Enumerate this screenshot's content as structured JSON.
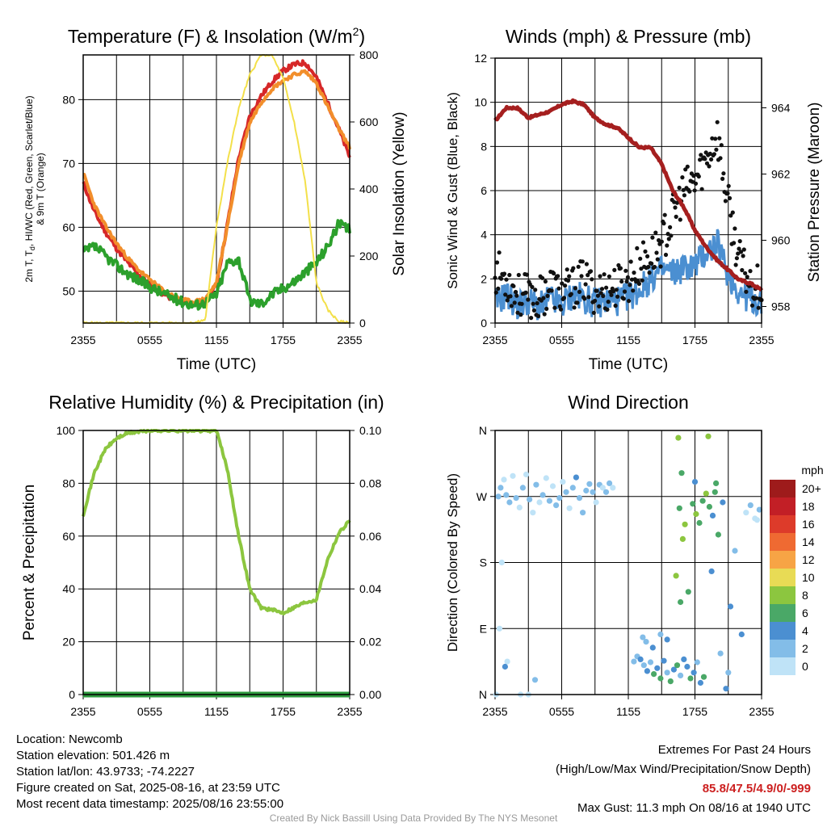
{
  "chart_data": [
    {
      "type": "line",
      "title": "Temperature (F) & Insolation (W/m²)",
      "xlabel": "Time (UTC)",
      "ylabel_left": "2m T, Td, HI/WC (Red, Green, Scarlet/Blue) & 9m T (Orange)",
      "ylabel_right": "Solar Insolation (Yellow)",
      "x_ticks": [
        "2355",
        "0555",
        "1155",
        "1755",
        "2355"
      ],
      "ylim": [
        45,
        87
      ],
      "yticks": [
        50,
        60,
        70,
        80
      ],
      "ylim_right": [
        0,
        800
      ],
      "yticks_right": [
        0,
        200,
        400,
        600,
        800
      ],
      "grid": true,
      "x": [
        0,
        1,
        2,
        3,
        4,
        5,
        6,
        7,
        8,
        9,
        10,
        11,
        12,
        13,
        14,
        15,
        16,
        17,
        18,
        19,
        20,
        21,
        22,
        23,
        24
      ],
      "series": [
        {
          "color": "#d62728",
          "axis": "left",
          "values": [
            67.0,
            62.5,
            59.3,
            56.7,
            54.5,
            52.6,
            51.1,
            49.8,
            48.8,
            48.1,
            47.9,
            48.4,
            51.0,
            60.6,
            70.8,
            77.4,
            80.5,
            82.8,
            84.5,
            85.5,
            85.8,
            83.5,
            79.5,
            75.5,
            71.0
          ]
        },
        {
          "color": "#f28e2b",
          "axis": "left",
          "values": [
            68.5,
            63.5,
            60.2,
            57.5,
            55.2,
            53.3,
            51.8,
            50.4,
            49.4,
            48.6,
            48.3,
            48.8,
            51.3,
            60.3,
            70.0,
            76.4,
            79.5,
            81.7,
            83.0,
            83.9,
            84.4,
            82.6,
            79.0,
            75.5,
            72.5
          ]
        },
        {
          "color": "#2ca02c",
          "axis": "left",
          "values": [
            56.0,
            57.0,
            55.5,
            54.0,
            52.8,
            51.7,
            50.7,
            49.8,
            49.0,
            48.3,
            47.8,
            48.2,
            49.5,
            54.5,
            55.0,
            48.5,
            48.0,
            49.5,
            50.5,
            51.5,
            53.0,
            54.5,
            57.0,
            60.5,
            59.5
          ]
        },
        {
          "color": "#f3e04a",
          "axis": "right",
          "values": [
            0,
            0,
            0,
            0,
            0,
            0,
            0,
            0,
            0,
            0,
            0,
            10,
            290,
            480,
            640,
            740,
            800,
            800,
            730,
            600,
            420,
            120,
            40,
            5,
            0
          ]
        }
      ]
    },
    {
      "type": "scatter",
      "title": "Winds (mph) & Pressure (mb)",
      "xlabel": "Time (UTC)",
      "ylabel_left": "Sonic Wind & Gust (Blue, Black)",
      "ylabel_right": "Station Pressure (Maroon)",
      "x_ticks": [
        "2355",
        "0555",
        "1155",
        "1755",
        "2355"
      ],
      "ylim": [
        0,
        12
      ],
      "yticks": [
        0,
        2,
        4,
        6,
        8,
        10,
        12
      ],
      "ylim_right": [
        957.5,
        965.5
      ],
      "yticks_right": [
        958,
        960,
        962,
        964
      ],
      "grid": true,
      "x": [
        0,
        1,
        2,
        3,
        4,
        5,
        6,
        7,
        8,
        9,
        10,
        11,
        12,
        13,
        14,
        15,
        16,
        17,
        18,
        19,
        20,
        21,
        22,
        23,
        24
      ],
      "series": [
        {
          "color": "#4b8fd1",
          "kind": "line",
          "axis": "left",
          "values": [
            0.9,
            1.3,
            0.8,
            1.0,
            0.7,
            1.1,
            0.8,
            1.3,
            1.1,
            0.9,
            1.0,
            1.0,
            1.2,
            1.5,
            2.0,
            2.4,
            2.3,
            2.5,
            2.6,
            3.2,
            3.6,
            2.2,
            1.4,
            1.1,
            0.9
          ]
        },
        {
          "color": "#111111",
          "kind": "points",
          "axis": "left",
          "values": [
            2.4,
            2.0,
            1.3,
            1.2,
            1.1,
            1.7,
            1.3,
            1.6,
            1.9,
            1.4,
            1.5,
            1.7,
            1.9,
            2.6,
            3.0,
            3.6,
            4.8,
            6.0,
            6.4,
            7.4,
            8.6,
            5.3,
            2.8,
            1.8,
            1.6
          ]
        },
        {
          "color": "#a51f1f",
          "kind": "line",
          "axis": "right",
          "values": [
            963.6,
            964.0,
            964.0,
            963.7,
            963.8,
            963.9,
            964.1,
            964.2,
            964.1,
            963.7,
            963.5,
            963.4,
            963.1,
            962.8,
            962.8,
            962.3,
            961.5,
            961.0,
            960.3,
            959.8,
            959.4,
            959.1,
            958.8,
            958.7,
            958.5
          ]
        }
      ]
    },
    {
      "type": "line",
      "title": "Relative Humidity (%) & Precipitation (in)",
      "ylabel_left": "Percent & Precipitation",
      "x_ticks": [
        "2355",
        "0555",
        "1155",
        "1755",
        "2355"
      ],
      "ylim": [
        0,
        100
      ],
      "yticks": [
        0,
        20,
        40,
        60,
        80,
        100
      ],
      "ylim_right": [
        0.0,
        0.1
      ],
      "yticks_right": [
        "0.00",
        "0.02",
        "0.04",
        "0.06",
        "0.08",
        "0.10"
      ],
      "grid": true,
      "x": [
        0,
        1,
        2,
        3,
        4,
        5,
        6,
        7,
        8,
        9,
        10,
        11,
        12,
        13,
        14,
        15,
        16,
        17,
        18,
        19,
        20,
        21,
        22,
        23,
        24
      ],
      "series": [
        {
          "color": "#8cc63f",
          "axis": "left",
          "values": [
            68,
            84,
            93,
            97,
            99,
            99.5,
            100,
            100,
            100,
            100,
            100,
            100,
            100,
            85,
            60,
            40,
            33,
            32,
            31,
            33,
            35,
            36,
            51,
            61,
            66
          ]
        },
        {
          "color": "#2e9a3e",
          "axis": "right",
          "values": [
            0,
            0,
            0,
            0,
            0,
            0,
            0,
            0,
            0,
            0,
            0,
            0,
            0,
            0,
            0,
            0,
            0,
            0,
            0,
            0,
            0,
            0,
            0,
            0,
            0
          ]
        }
      ]
    },
    {
      "type": "scatter",
      "title": "Wind Direction",
      "ylabel_left": "Direction (Colored By Speed)",
      "x_ticks": [
        "2355",
        "0555",
        "1155",
        "1755",
        "2355"
      ],
      "y_ticks": [
        "N",
        "E",
        "S",
        "W",
        "N"
      ],
      "ylim": [
        0,
        360
      ],
      "grid": true,
      "colorbar": {
        "unit": "mph",
        "labels": [
          "20+",
          "18",
          "16",
          "14",
          "12",
          "10",
          "8",
          "6",
          "4",
          "2",
          "0"
        ],
        "colors": [
          "#9e1b1b",
          "#c21f26",
          "#dd3b2a",
          "#ef6a32",
          "#f7a445",
          "#e8db55",
          "#8cc63f",
          "#4aa867",
          "#4b8fd1",
          "#83bde8",
          "#bfe3f7"
        ]
      },
      "points": [
        {
          "x": 0.3,
          "dir": 270,
          "speed": 1
        },
        {
          "x": 0.5,
          "dir": 282,
          "speed": 1
        },
        {
          "x": 0.8,
          "dir": 293,
          "speed": 0
        },
        {
          "x": 1.0,
          "dir": 272,
          "speed": 1
        },
        {
          "x": 1.3,
          "dir": 262,
          "speed": 1
        },
        {
          "x": 1.6,
          "dir": 298,
          "speed": 0
        },
        {
          "x": 1.9,
          "dir": 268,
          "speed": 1
        },
        {
          "x": 2.2,
          "dir": 255,
          "speed": 0
        },
        {
          "x": 2.5,
          "dir": 282,
          "speed": 1
        },
        {
          "x": 2.8,
          "dir": 300,
          "speed": 0
        },
        {
          "x": 3.1,
          "dir": 266,
          "speed": 1
        },
        {
          "x": 3.4,
          "dir": 248,
          "speed": 0
        },
        {
          "x": 3.7,
          "dir": 286,
          "speed": 1
        },
        {
          "x": 4.0,
          "dir": 262,
          "speed": 0
        },
        {
          "x": 4.3,
          "dir": 272,
          "speed": 1
        },
        {
          "x": 4.6,
          "dir": 295,
          "speed": 0
        },
        {
          "x": 4.9,
          "dir": 264,
          "speed": 1
        },
        {
          "x": 5.2,
          "dir": 284,
          "speed": 0
        },
        {
          "x": 5.5,
          "dir": 258,
          "speed": 1
        },
        {
          "x": 5.8,
          "dir": 268,
          "speed": 1
        },
        {
          "x": 6.1,
          "dir": 290,
          "speed": 0
        },
        {
          "x": 6.4,
          "dir": 276,
          "speed": 1
        },
        {
          "x": 6.7,
          "dir": 254,
          "speed": 0
        },
        {
          "x": 7.0,
          "dir": 282,
          "speed": 1
        },
        {
          "x": 7.3,
          "dir": 296,
          "speed": 2
        },
        {
          "x": 7.6,
          "dir": 268,
          "speed": 1
        },
        {
          "x": 7.9,
          "dir": 248,
          "speed": 1
        },
        {
          "x": 8.2,
          "dir": 278,
          "speed": 1
        },
        {
          "x": 8.5,
          "dir": 287,
          "speed": 1
        },
        {
          "x": 8.8,
          "dir": 276,
          "speed": 1
        },
        {
          "x": 9.1,
          "dir": 262,
          "speed": 0
        },
        {
          "x": 9.4,
          "dir": 286,
          "speed": 1
        },
        {
          "x": 9.7,
          "dir": 282,
          "speed": 0
        },
        {
          "x": 10.0,
          "dir": 276,
          "speed": 1
        },
        {
          "x": 10.3,
          "dir": 288,
          "speed": 1
        },
        {
          "x": 10.6,
          "dir": 282,
          "speed": 0
        },
        {
          "x": 1.1,
          "dir": 45,
          "speed": 0
        },
        {
          "x": 2.3,
          "dir": 0,
          "speed": 0
        },
        {
          "x": 3.0,
          "dir": 0,
          "speed": 0
        },
        {
          "x": 3.6,
          "dir": 20,
          "speed": 1
        },
        {
          "x": 0.4,
          "dir": 90,
          "speed": 0
        },
        {
          "x": 0.1,
          "dir": 0,
          "speed": 0
        },
        {
          "x": 0.6,
          "dir": 180,
          "speed": 0
        },
        {
          "x": 0.9,
          "dir": 38,
          "speed": 2
        },
        {
          "x": 12.5,
          "dir": 45,
          "speed": 1
        },
        {
          "x": 12.8,
          "dir": 52,
          "speed": 1
        },
        {
          "x": 13.1,
          "dir": 48,
          "speed": 2
        },
        {
          "x": 13.4,
          "dir": 40,
          "speed": 1
        },
        {
          "x": 13.7,
          "dir": 32,
          "speed": 2
        },
        {
          "x": 14.0,
          "dir": 44,
          "speed": 1
        },
        {
          "x": 14.3,
          "dir": 28,
          "speed": 3
        },
        {
          "x": 14.6,
          "dir": 36,
          "speed": 2
        },
        {
          "x": 14.9,
          "dir": 22,
          "speed": 3
        },
        {
          "x": 15.2,
          "dir": 46,
          "speed": 2
        },
        {
          "x": 15.5,
          "dir": 30,
          "speed": 1
        },
        {
          "x": 15.8,
          "dir": 18,
          "speed": 3
        },
        {
          "x": 16.1,
          "dir": 34,
          "speed": 2
        },
        {
          "x": 16.4,
          "dir": 40,
          "speed": 3
        },
        {
          "x": 16.7,
          "dir": 26,
          "speed": 1
        },
        {
          "x": 17.0,
          "dir": 48,
          "speed": 2
        },
        {
          "x": 17.3,
          "dir": 38,
          "speed": 2
        },
        {
          "x": 17.6,
          "dir": 22,
          "speed": 3
        },
        {
          "x": 17.9,
          "dir": 30,
          "speed": 2
        },
        {
          "x": 18.2,
          "dir": 44,
          "speed": 1
        },
        {
          "x": 18.5,
          "dir": 16,
          "speed": 2
        },
        {
          "x": 18.8,
          "dir": 24,
          "speed": 3
        },
        {
          "x": 13.3,
          "dir": 78,
          "speed": 1
        },
        {
          "x": 13.6,
          "dir": 72,
          "speed": 1
        },
        {
          "x": 14.2,
          "dir": 64,
          "speed": 2
        },
        {
          "x": 14.9,
          "dir": 82,
          "speed": 1
        },
        {
          "x": 15.5,
          "dir": 75,
          "speed": 2
        },
        {
          "x": 16.5,
          "dir": 350,
          "speed": 4
        },
        {
          "x": 16.8,
          "dir": 302,
          "speed": 3
        },
        {
          "x": 16.6,
          "dir": 254,
          "speed": 3
        },
        {
          "x": 17.1,
          "dir": 232,
          "speed": 4
        },
        {
          "x": 16.9,
          "dir": 212,
          "speed": 4
        },
        {
          "x": 16.3,
          "dir": 162,
          "speed": 4
        },
        {
          "x": 17.4,
          "dir": 140,
          "speed": 3
        },
        {
          "x": 16.7,
          "dir": 126,
          "speed": 3
        },
        {
          "x": 17.8,
          "dir": 260,
          "speed": 3
        },
        {
          "x": 18.1,
          "dir": 246,
          "speed": 4
        },
        {
          "x": 18.4,
          "dir": 234,
          "speed": 3
        },
        {
          "x": 18.7,
          "dir": 264,
          "speed": 3
        },
        {
          "x": 19.0,
          "dir": 274,
          "speed": 4
        },
        {
          "x": 19.3,
          "dir": 256,
          "speed": 3
        },
        {
          "x": 19.6,
          "dir": 244,
          "speed": 2
        },
        {
          "x": 19.9,
          "dir": 288,
          "speed": 3
        },
        {
          "x": 19.2,
          "dir": 352,
          "speed": 4
        },
        {
          "x": 19.5,
          "dir": 168,
          "speed": 2
        },
        {
          "x": 20.1,
          "dir": 218,
          "speed": 3
        },
        {
          "x": 20.5,
          "dir": 262,
          "speed": 2
        },
        {
          "x": 21.2,
          "dir": 120,
          "speed": 2
        },
        {
          "x": 21.6,
          "dir": 196,
          "speed": 1
        },
        {
          "x": 22.2,
          "dir": 82,
          "speed": 2
        },
        {
          "x": 22.6,
          "dir": 248,
          "speed": 0
        },
        {
          "x": 23.0,
          "dir": 258,
          "speed": 1
        },
        {
          "x": 23.4,
          "dir": 240,
          "speed": 0
        },
        {
          "x": 23.8,
          "dir": 252,
          "speed": 1
        },
        {
          "x": 23.6,
          "dir": 238,
          "speed": 0
        },
        {
          "x": 20.8,
          "dir": 8,
          "speed": 2
        },
        {
          "x": 18.0,
          "dir": 290,
          "speed": 2
        },
        {
          "x": 19.8,
          "dir": 276,
          "speed": 3
        },
        {
          "x": 20.3,
          "dir": 56,
          "speed": 1
        },
        {
          "x": 21.0,
          "dir": 30,
          "speed": 1
        }
      ]
    }
  ],
  "footer": {
    "location": "Location: Newcomb",
    "elevation": "Station elevation: 501.426 m",
    "latlon": "Station lat/lon: 43.9733; -74.2227",
    "created": "Figure created on Sat, 2025-08-16, at 23:59 UTC",
    "recent": "Most recent data timestamp: 2025/08/16 23:55:00",
    "extremes_title": "Extremes For Past 24 Hours",
    "extremes_sub": "(High/Low/Max Wind/Precipitation/Snow Depth)",
    "extremes_values": "85.8/47.5/4.9/0/-999",
    "max_gust": "Max Gust: 11.3 mph On 08/16 at 1940 UTC",
    "credit": "Created By Nick Bassill Using Data Provided By The NYS Mesonet"
  }
}
